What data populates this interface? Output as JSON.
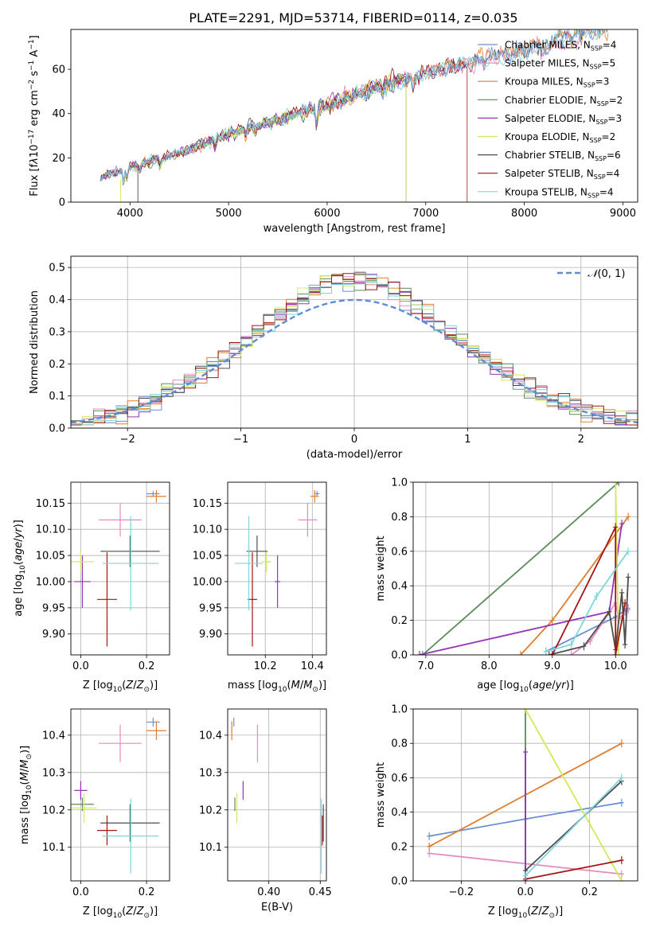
{
  "colors": {
    "chabrier_miles": "#6b8fd6",
    "salpeter_miles": "#e48cbf",
    "kroupa_miles": "#de7f2e",
    "chabrier_elodie": "#5b8a5b",
    "salpeter_elodie": "#9633b6",
    "kroupa_elodie": "#d4e85a",
    "chabrier_stelib": "#4d4d4d",
    "salpeter_stelib": "#a31515",
    "kroupa_stelib": "#7fd6d9",
    "gaussian": "#5b8ed6"
  },
  "chart_data": [
    {
      "id": "spectrum",
      "type": "line",
      "title": "PLATE=2291, MJD=53714, FIBERID=0114, z=0.035",
      "xlabel": "wavelength [Angstrom, rest frame]",
      "ylabel": "Flux [f_λ 10⁻¹⁷ erg cm⁻² s⁻¹ A⁻¹]",
      "xlim": [
        3400,
        9150
      ],
      "ylim": [
        0,
        78
      ],
      "xticks": [
        4000,
        5000,
        6000,
        7000,
        8000,
        9000
      ],
      "yticks": [
        0,
        20,
        40,
        60
      ],
      "legend_position": "upper right",
      "legend": [
        "Chabrier MILES, N_SSP=4",
        "Salpeter MILES, N_SSP=5",
        "Kroupa MILES, N_SSP=3",
        "Chabrier ELODIE, N_SSP=2",
        "Salpeter ELODIE, N_SSP=3",
        "Kroupa ELODIE, N_SSP=2",
        "Chabrier STELIB, N_SSP=6",
        "Salpeter STELIB, N_SSP=4",
        "Kroupa STELIB, N_SSP=4"
      ],
      "series": [
        {
          "name": "Chabrier MILES, N_SSP=4",
          "x_range": [
            3700,
            8850
          ]
        },
        {
          "name": "Salpeter MILES, N_SSP=5",
          "x_range": [
            3700,
            8850
          ]
        },
        {
          "name": "Kroupa MILES, N_SSP=3",
          "x_range": [
            3700,
            8850
          ]
        },
        {
          "name": "Chabrier ELODIE, N_SSP=2",
          "x_range": [
            3700,
            6800
          ]
        },
        {
          "name": "Salpeter ELODIE, N_SSP=3",
          "x_range": [
            3700,
            6800
          ]
        },
        {
          "name": "Kroupa ELODIE, N_SSP=2",
          "x_range": [
            3900,
            6800
          ]
        },
        {
          "name": "Chabrier STELIB, N_SSP=6",
          "x_range": [
            3700,
            8850
          ]
        },
        {
          "name": "Salpeter STELIB, N_SSP=4",
          "x_range": [
            3700,
            7420
          ]
        },
        {
          "name": "Kroupa STELIB, N_SSP=4",
          "x_range": [
            3700,
            8850
          ]
        }
      ],
      "continuum": [
        [
          3700,
          11
        ],
        [
          4000,
          16
        ],
        [
          4500,
          22
        ],
        [
          5000,
          31
        ],
        [
          5500,
          37
        ],
        [
          6000,
          44
        ],
        [
          6500,
          52
        ],
        [
          7000,
          58
        ],
        [
          7500,
          64
        ],
        [
          8000,
          68
        ],
        [
          8500,
          75
        ],
        [
          8850,
          80
        ]
      ]
    },
    {
      "id": "residuals",
      "type": "line",
      "xlabel": "(data-model)/error",
      "ylabel": "Normed distribution",
      "xlim": [
        -2.5,
        2.5
      ],
      "ylim": [
        0,
        0.535
      ],
      "xticks": [
        -2,
        -1,
        0,
        1,
        2
      ],
      "yticks": [
        0.0,
        0.1,
        0.2,
        0.3,
        0.4,
        0.5
      ],
      "legend_position": "upper right",
      "legend": [
        "N(0,1)"
      ]
    },
    {
      "id": "age_vs_Z",
      "type": "scatter",
      "xlabel": "Z [log10(Z/Z☉)]",
      "ylabel": "age  [log10(age/yr)]",
      "xlim": [
        -0.03,
        0.27
      ],
      "ylim": [
        9.86,
        10.19
      ],
      "xticks": [
        0.0,
        0.2
      ],
      "yticks": [
        9.9,
        9.95,
        10.0,
        10.05,
        10.1,
        10.15
      ],
      "points": [
        {
          "name": "Chabrier MILES, N_SSP=4",
          "x": 0.22,
          "y": 10.168,
          "xerr": 0.02,
          "yerr": 0.005
        },
        {
          "name": "Salpeter MILES, N_SSP=5",
          "x": 0.12,
          "y": 10.118,
          "xerr": 0.065,
          "yerr": 0.032
        },
        {
          "name": "Kroupa MILES, N_SSP=3",
          "x": 0.23,
          "y": 10.163,
          "xerr": 0.03,
          "yerr": 0.012
        },
        {
          "name": "Chabrier ELODIE, N_SSP=2",
          "x": 0.0,
          "y": 10.038,
          "xerr": 0.0,
          "yerr": 0.0
        },
        {
          "name": "Salpeter ELODIE, N_SSP=3",
          "x": 0.005,
          "y": 10.0,
          "xerr": 0.025,
          "yerr": 0.05
        },
        {
          "name": "Kroupa ELODIE, N_SSP=2",
          "x": 0.0,
          "y": 10.038,
          "xerr": 0.04,
          "yerr": 0.02
        },
        {
          "name": "Chabrier STELIB, N_SSP=6",
          "x": 0.15,
          "y": 10.058,
          "xerr": 0.09,
          "yerr": 0.03
        },
        {
          "name": "Salpeter STELIB, N_SSP=4",
          "x": 0.08,
          "y": 9.966,
          "xerr": 0.03,
          "yerr": 0.09
        },
        {
          "name": "Kroupa STELIB, N_SSP=4",
          "x": 0.152,
          "y": 10.035,
          "xerr": 0.085,
          "yerr": 0.09
        }
      ]
    },
    {
      "id": "age_vs_mass",
      "type": "scatter",
      "xlabel": "mass [log10(M/M☉)]",
      "ylabel": "",
      "xlim": [
        10.04,
        10.46
      ],
      "ylim": [
        9.86,
        10.19
      ],
      "xticks": [
        10.2,
        10.4
      ],
      "yticks": [
        9.9,
        9.95,
        10.0,
        10.05,
        10.1,
        10.15
      ],
      "points": [
        {
          "name": "Chabrier MILES, N_SSP=4",
          "x": 10.42,
          "y": 10.168,
          "xerr": 0.01,
          "yerr": 0.005
        },
        {
          "name": "Salpeter MILES, N_SSP=5",
          "x": 10.38,
          "y": 10.118,
          "xerr": 0.04,
          "yerr": 0.032
        },
        {
          "name": "Kroupa MILES, N_SSP=3",
          "x": 10.41,
          "y": 10.163,
          "xerr": 0.018,
          "yerr": 0.012
        },
        {
          "name": "Chabrier ELODIE, N_SSP=2",
          "x": 10.215,
          "y": 10.038,
          "xerr": 0.005,
          "yerr": 0.0
        },
        {
          "name": "Salpeter ELODIE, N_SSP=3",
          "x": 10.252,
          "y": 10.0,
          "xerr": 0.012,
          "yerr": 0.05
        },
        {
          "name": "Kroupa ELODIE, N_SSP=2",
          "x": 10.205,
          "y": 10.038,
          "xerr": 0.02,
          "yerr": 0.02
        },
        {
          "name": "Chabrier STELIB, N_SSP=6",
          "x": 10.165,
          "y": 10.058,
          "xerr": 0.045,
          "yerr": 0.03
        },
        {
          "name": "Salpeter STELIB, N_SSP=4",
          "x": 10.145,
          "y": 9.966,
          "xerr": 0.02,
          "yerr": 0.09
        },
        {
          "name": "Kroupa STELIB, N_SSP=4",
          "x": 10.13,
          "y": 10.035,
          "xerr": 0.06,
          "yerr": 0.09
        }
      ]
    },
    {
      "id": "weight_vs_age",
      "type": "line",
      "xlabel": "age  [log10(age/yr)]",
      "ylabel": "mass weight",
      "xlim": [
        6.8,
        10.35
      ],
      "ylim": [
        0,
        1.0
      ],
      "xticks": [
        7,
        8,
        9,
        10
      ],
      "yticks": [
        0.0,
        0.2,
        0.4,
        0.6,
        0.8,
        1.0
      ],
      "series": [
        {
          "name": "Chabrier MILES, N_SSP=4",
          "x": [
            8.9,
            10.0,
            10.2,
            10.15
          ],
          "y": [
            0.02,
            0.22,
            0.27,
            0.25
          ]
        },
        {
          "name": "Salpeter MILES, N_SSP=5",
          "x": [
            9.3,
            9.6,
            10.0,
            10.05,
            10.2
          ],
          "y": [
            0.0,
            0.08,
            0.3,
            0.21,
            0.26
          ]
        },
        {
          "name": "Kroupa MILES, N_SSP=3",
          "x": [
            8.5,
            9.0,
            10.2
          ],
          "y": [
            0.0,
            0.2,
            0.8
          ]
        },
        {
          "name": "Chabrier ELODIE, N_SSP=2",
          "x": [
            6.95,
            10.05
          ],
          "y": [
            0.0,
            1.0
          ]
        },
        {
          "name": "Salpeter ELODIE, N_SSP=3",
          "x": [
            6.9,
            9.9,
            10.1
          ],
          "y": [
            0.0,
            0.25,
            0.76
          ]
        },
        {
          "name": "Kroupa ELODIE, N_SSP=2",
          "x": [
            10.0,
            10.05
          ],
          "y": [
            1.0,
            0.0
          ]
        },
        {
          "name": "Chabrier STELIB, N_SSP=6",
          "x": [
            8.95,
            9.5,
            9.9,
            10.0,
            10.1,
            10.15,
            10.2
          ],
          "y": [
            0.0,
            0.05,
            0.25,
            0.03,
            0.36,
            0.06,
            0.45
          ]
        },
        {
          "name": "Salpeter STELIB, N_SSP=4",
          "x": [
            9.0,
            10.0,
            10.0,
            10.15
          ],
          "y": [
            0.0,
            0.74,
            0.0,
            0.3
          ]
        },
        {
          "name": "Kroupa STELIB, N_SSP=4",
          "x": [
            8.9,
            9.3,
            9.7,
            10.2
          ],
          "y": [
            0.02,
            0.06,
            0.34,
            0.6
          ]
        }
      ]
    },
    {
      "id": "mass_vs_Z",
      "type": "scatter",
      "xlabel": "Z [log10(Z/Z☉)]",
      "ylabel": "mass [log10(M/M☉)]",
      "xlim": [
        -0.03,
        0.27
      ],
      "ylim": [
        10.01,
        10.47
      ],
      "xticks": [
        0.0,
        0.2
      ],
      "yticks": [
        10.1,
        10.2,
        10.3,
        10.4
      ],
      "points": [
        {
          "name": "Chabrier MILES, N_SSP=4",
          "x": 0.22,
          "y": 10.435,
          "xerr": 0.02,
          "yerr": 0.012
        },
        {
          "name": "Salpeter MILES, N_SSP=5",
          "x": 0.12,
          "y": 10.378,
          "xerr": 0.065,
          "yerr": 0.05
        },
        {
          "name": "Kroupa MILES, N_SSP=3",
          "x": 0.23,
          "y": 10.412,
          "xerr": 0.03,
          "yerr": 0.025
        },
        {
          "name": "Chabrier ELODIE, N_SSP=2",
          "x": 0.005,
          "y": 10.215,
          "xerr": 0.035,
          "yerr": 0.018
        },
        {
          "name": "Salpeter ELODIE, N_SSP=3",
          "x": 0.0,
          "y": 10.252,
          "xerr": 0.02,
          "yerr": 0.025
        },
        {
          "name": "Kroupa ELODIE, N_SSP=2",
          "x": 0.01,
          "y": 10.205,
          "xerr": 0.04,
          "yerr": 0.04
        },
        {
          "name": "Chabrier STELIB, N_SSP=6",
          "x": 0.15,
          "y": 10.165,
          "xerr": 0.09,
          "yerr": 0.05
        },
        {
          "name": "Salpeter STELIB, N_SSP=4",
          "x": 0.08,
          "y": 10.145,
          "xerr": 0.03,
          "yerr": 0.04
        },
        {
          "name": "Kroupa STELIB, N_SSP=4",
          "x": 0.152,
          "y": 10.13,
          "xerr": 0.085,
          "yerr": 0.1
        }
      ]
    },
    {
      "id": "mass_vs_ebv",
      "type": "scatter",
      "xlabel": "E(B-V)",
      "ylabel": "",
      "xlim": [
        0.36,
        0.456
      ],
      "ylim": [
        10.01,
        10.47
      ],
      "xticks": [
        0.4,
        0.45
      ],
      "yticks": [
        10.1,
        10.2,
        10.3,
        10.4
      ],
      "points": [
        {
          "name": "Chabrier MILES, N_SSP=4",
          "x": 0.366,
          "y": 10.435,
          "xerr": 0.0,
          "yerr": 0.012
        },
        {
          "name": "Salpeter MILES, N_SSP=5",
          "x": 0.389,
          "y": 10.378,
          "xerr": 0.0,
          "yerr": 0.05
        },
        {
          "name": "Kroupa MILES, N_SSP=3",
          "x": 0.364,
          "y": 10.412,
          "xerr": 0.0,
          "yerr": 0.025
        },
        {
          "name": "Chabrier ELODIE, N_SSP=2",
          "x": 0.367,
          "y": 10.215,
          "xerr": 0.0,
          "yerr": 0.018
        },
        {
          "name": "Salpeter ELODIE, N_SSP=3",
          "x": 0.375,
          "y": 10.252,
          "xerr": 0.0,
          "yerr": 0.025
        },
        {
          "name": "Kroupa ELODIE, N_SSP=2",
          "x": 0.369,
          "y": 10.205,
          "xerr": 0.0,
          "yerr": 0.04
        },
        {
          "name": "Chabrier STELIB, N_SSP=6",
          "x": 0.453,
          "y": 10.165,
          "xerr": 0.0,
          "yerr": 0.05
        },
        {
          "name": "Salpeter STELIB, N_SSP=4",
          "x": 0.452,
          "y": 10.145,
          "xerr": 0.0,
          "yerr": 0.04
        },
        {
          "name": "Kroupa STELIB, N_SSP=4",
          "x": 0.451,
          "y": 10.13,
          "xerr": 0.0,
          "yerr": 0.1
        }
      ]
    },
    {
      "id": "weight_vs_Z",
      "type": "line",
      "xlabel": "Z [log10(Z/Z☉)]",
      "ylabel": "mass weight",
      "xlim": [
        -0.35,
        0.35
      ],
      "ylim": [
        0,
        1.0
      ],
      "xticks": [
        -0.2,
        0.0,
        0.2
      ],
      "yticks": [
        0.0,
        0.2,
        0.4,
        0.6,
        0.8,
        1.0
      ],
      "series": [
        {
          "name": "Chabrier MILES, N_SSP=4",
          "x": [
            -0.3,
            0.0,
            0.3
          ],
          "y": [
            0.26,
            0.36,
            0.455
          ]
        },
        {
          "name": "Salpeter MILES, N_SSP=5",
          "x": [
            -0.3,
            0.3
          ],
          "y": [
            0.16,
            0.04
          ]
        },
        {
          "name": "Kroupa MILES, N_SSP=3",
          "x": [
            -0.3,
            0.3
          ],
          "y": [
            0.2,
            0.8
          ]
        },
        {
          "name": "Chabrier ELODIE, N_SSP=2",
          "x": [
            0.0,
            0.0
          ],
          "y": [
            0.0,
            1.0
          ]
        },
        {
          "name": "Salpeter ELODIE, N_SSP=3",
          "x": [
            0.0,
            0.0
          ],
          "y": [
            0.0,
            0.75
          ]
        },
        {
          "name": "Kroupa ELODIE, N_SSP=2",
          "x": [
            0.0,
            0.3
          ],
          "y": [
            1.0,
            0.0
          ]
        },
        {
          "name": "Chabrier STELIB, N_SSP=6",
          "x": [
            0.0,
            0.3
          ],
          "y": [
            0.06,
            0.58
          ]
        },
        {
          "name": "Salpeter STELIB, N_SSP=4",
          "x": [
            0.0,
            0.3
          ],
          "y": [
            0.01,
            0.12
          ]
        },
        {
          "name": "Kroupa STELIB, N_SSP=4",
          "x": [
            0.0,
            0.3
          ],
          "y": [
            0.03,
            0.6
          ]
        }
      ]
    }
  ]
}
